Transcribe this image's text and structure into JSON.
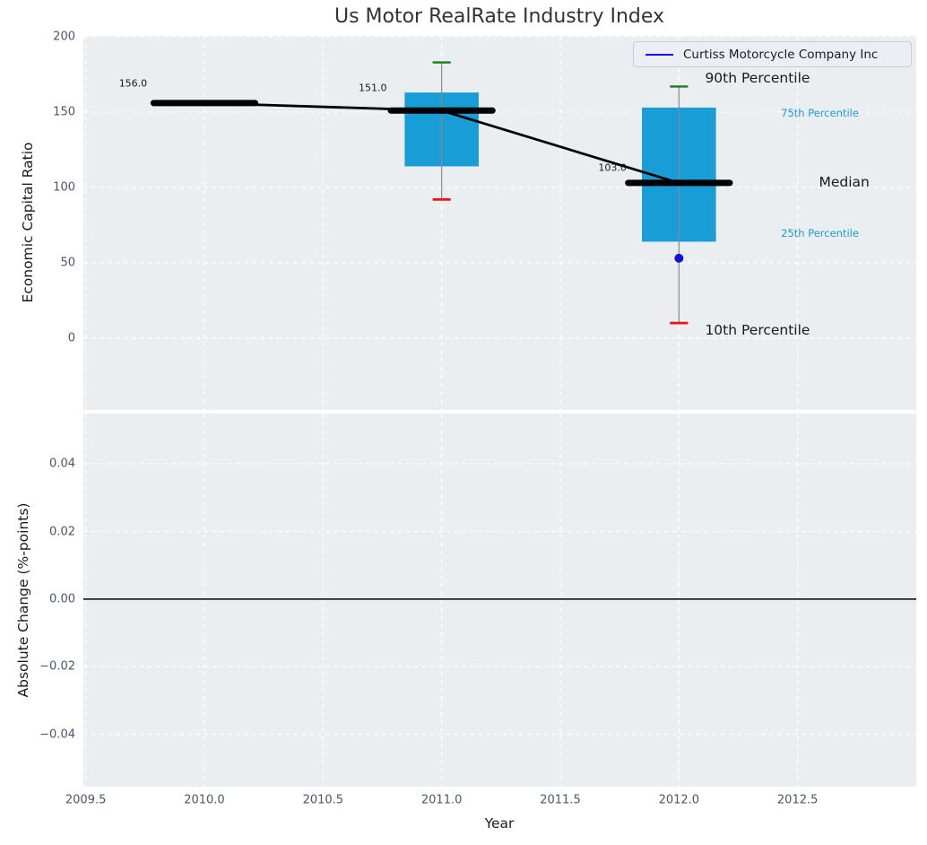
{
  "legend": {
    "label": "Curtiss Motorcycle Company Inc",
    "swatch_color": "#1111ee",
    "bg": "#edeef5",
    "border": "#c9cad3"
  },
  "colors": {
    "figure_bg": "#ffffff",
    "axes_bg": "#eaeef0",
    "grid": "#ffffff",
    "box_fill": "#189dd6",
    "whisker": "#8a8a8a",
    "cap_top_green": "#177d17",
    "cap_bottom_red": "#ee1111",
    "median_black": "#000000",
    "company_blue": "#1414d6",
    "tick_label": "#47586e",
    "title_color": "#333333",
    "zero_line": "#000000",
    "annotation_cyan": "#189dd6",
    "annotation_black": "#1a1a1a"
  },
  "chart_data": [
    {
      "type": "box",
      "title": "Us Motor RealRate Industry Index",
      "ylabel": "Economic Capital Ratio",
      "xlim": [
        2009.49,
        2013.0
      ],
      "ylim": [
        -47.7,
        200.6
      ],
      "xticks": [
        2009.5,
        2010.0,
        2010.5,
        2011.0,
        2011.5,
        2012.0,
        2012.5
      ],
      "yticks": [
        0,
        50,
        100,
        150,
        200
      ],
      "ytick_labels": [
        "0",
        "50",
        "100",
        "150",
        "200"
      ],
      "grid": true,
      "categories": [
        2010,
        2011,
        2012
      ],
      "boxes": [
        {
          "year": 2010,
          "median": 156.0,
          "p10": null,
          "p25": null,
          "p75": null,
          "p90": null
        },
        {
          "year": 2011,
          "median": 151.0,
          "p10": 92,
          "p25": 114,
          "p75": 163,
          "p90": 183
        },
        {
          "year": 2012,
          "median": 103.0,
          "p10": 10,
          "p25": 64,
          "p75": 153,
          "p90": 167
        }
      ],
      "median_trend_line": {
        "x": [
          2010,
          2011,
          2012
        ],
        "y": [
          156.0,
          151.0,
          103.0
        ]
      },
      "median_value_labels": [
        {
          "text": "156.0",
          "x": 2009.64,
          "y": 169
        },
        {
          "text": "151.0",
          "x": 2010.65,
          "y": 166
        },
        {
          "text": "103.0",
          "x": 2011.66,
          "y": 113
        }
      ],
      "company_series": {
        "name": "Curtiss Motorcycle Company Inc",
        "x": [
          2012
        ],
        "y": [
          53
        ]
      },
      "annotations": [
        {
          "text": "90th Percentile",
          "x": 2012.11,
          "y": 172.5,
          "color": "#1a1a1a",
          "size": 15.5
        },
        {
          "text": "75th Percentile",
          "x": 2012.43,
          "y": 149.4,
          "color": "#189dd6",
          "size": 11.5
        },
        {
          "text": "Median",
          "x": 2012.59,
          "y": 103.5,
          "color": "#1a1a1a",
          "size": 15.5
        },
        {
          "text": "25th Percentile",
          "x": 2012.43,
          "y": 69.6,
          "color": "#189dd6",
          "size": 11.5
        },
        {
          "text": "10th Percentile",
          "x": 2012.11,
          "y": 5.3,
          "color": "#1a1a1a",
          "size": 15.5
        }
      ],
      "box_halfwidth_years": 0.156,
      "median_halfwidth_years": 0.214,
      "cap_halfwidth_years": 0.038
    },
    {
      "type": "line",
      "ylabel": "Absolute Change (%-points)",
      "xlabel": "Year",
      "xlim": [
        2009.49,
        2013.0
      ],
      "ylim": [
        -0.0555,
        0.0549
      ],
      "xticks": [
        2009.5,
        2010.0,
        2010.5,
        2011.0,
        2011.5,
        2012.0,
        2012.5
      ],
      "xtick_labels": [
        "2009.5",
        "2010.0",
        "2010.5",
        "2011.0",
        "2011.5",
        "2012.0",
        "2012.5"
      ],
      "yticks": [
        0.04,
        0.02,
        0.0,
        -0.02,
        -0.04
      ],
      "ytick_labels": [
        "0.04",
        "0.02",
        "0.00",
        "−0.02",
        "−0.04"
      ],
      "grid": true,
      "zero_line": 0.0,
      "series": []
    }
  ]
}
